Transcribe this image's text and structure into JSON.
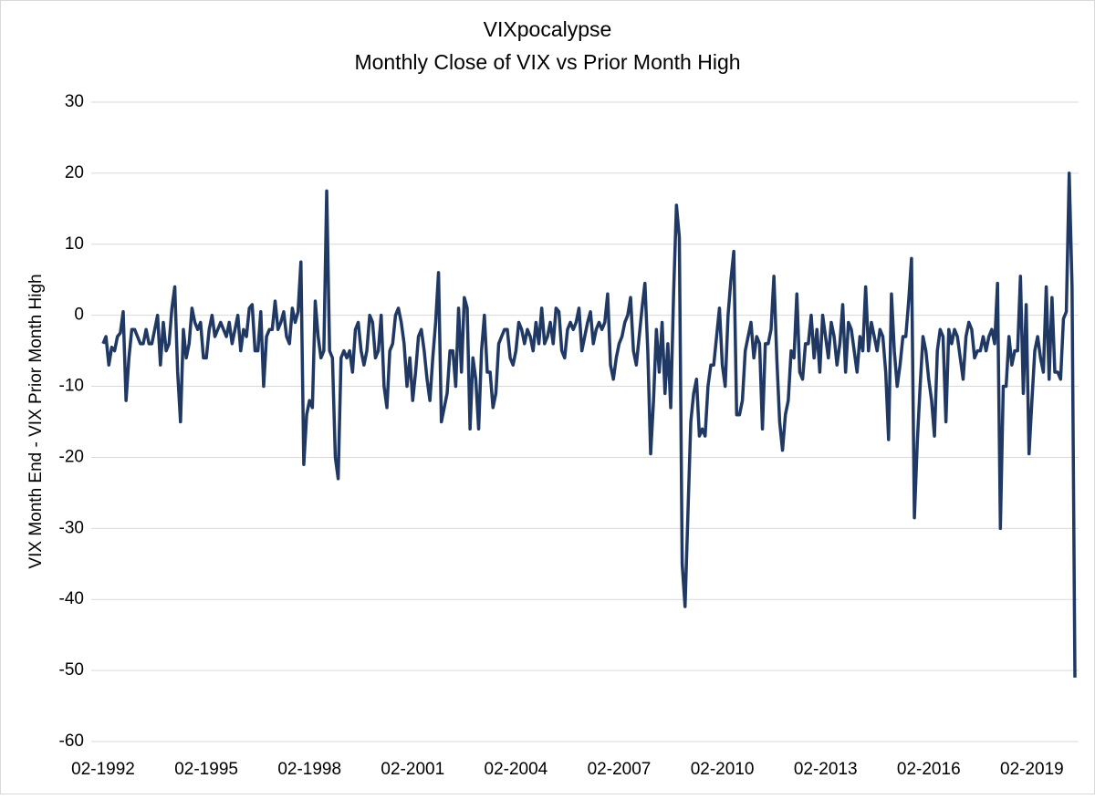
{
  "chart_data": {
    "type": "line",
    "title": "VIXpocalypse",
    "subtitle": "Monthly Close of VIX vs Prior Month High",
    "y_label": "VIX Month End - VIX Prior Month High",
    "ylim": [
      -60,
      30
    ],
    "yticks": [
      -60,
      -50,
      -40,
      -30,
      -20,
      -10,
      0,
      10,
      20,
      30
    ],
    "grid": true,
    "categories": [
      "02-1992",
      null,
      null,
      null,
      null,
      null,
      null,
      null,
      null,
      null,
      null,
      null,
      null,
      null,
      null,
      null,
      null,
      null,
      null,
      null,
      null,
      null,
      null,
      null,
      null,
      null,
      null,
      null,
      null,
      null,
      null,
      null,
      null,
      null,
      null,
      null,
      "02-1995",
      null,
      null,
      null,
      null,
      null,
      null,
      null,
      null,
      null,
      null,
      null,
      null,
      null,
      null,
      null,
      null,
      null,
      null,
      null,
      null,
      null,
      null,
      null,
      null,
      null,
      null,
      null,
      null,
      null,
      null,
      null,
      null,
      null,
      null,
      null,
      "02-1998",
      null,
      null,
      null,
      null,
      null,
      null,
      null,
      null,
      null,
      null,
      null,
      null,
      null,
      null,
      null,
      null,
      null,
      null,
      null,
      null,
      null,
      null,
      null,
      null,
      null,
      null,
      null,
      null,
      null,
      null,
      null,
      null,
      null,
      null,
      null,
      "02-2001",
      null,
      null,
      null,
      null,
      null,
      null,
      null,
      null,
      null,
      null,
      null,
      null,
      null,
      null,
      null,
      null,
      null,
      null,
      null,
      null,
      null,
      null,
      null,
      null,
      null,
      null,
      null,
      null,
      null,
      null,
      null,
      null,
      null,
      null,
      null,
      "02-2004",
      null,
      null,
      null,
      null,
      null,
      null,
      null,
      null,
      null,
      null,
      null,
      null,
      null,
      null,
      null,
      null,
      null,
      null,
      null,
      null,
      null,
      null,
      null,
      null,
      null,
      null,
      null,
      null,
      null,
      null,
      null,
      null,
      null,
      null,
      null,
      "02-2007",
      null,
      null,
      null,
      null,
      null,
      null,
      null,
      null,
      null,
      null,
      null,
      null,
      null,
      null,
      null,
      null,
      null,
      null,
      null,
      null,
      null,
      null,
      null,
      null,
      null,
      null,
      null,
      null,
      null,
      null,
      null,
      null,
      null,
      null,
      null,
      "02-2010",
      null,
      null,
      null,
      null,
      null,
      null,
      null,
      null,
      null,
      null,
      null,
      null,
      null,
      null,
      null,
      null,
      null,
      null,
      null,
      null,
      null,
      null,
      null,
      null,
      null,
      null,
      null,
      null,
      null,
      null,
      null,
      null,
      null,
      null,
      null,
      "02-2013",
      null,
      null,
      null,
      null,
      null,
      null,
      null,
      null,
      null,
      null,
      null,
      null,
      null,
      null,
      null,
      null,
      null,
      null,
      null,
      null,
      null,
      null,
      null,
      null,
      null,
      null,
      null,
      null,
      null,
      null,
      null,
      null,
      null,
      null,
      null,
      "02-2016",
      null,
      null,
      null,
      null,
      null,
      null,
      null,
      null,
      null,
      null,
      null,
      null,
      null,
      null,
      null,
      null,
      null,
      null,
      null,
      null,
      null,
      null,
      null,
      null,
      null,
      null,
      null,
      null,
      null,
      null,
      null,
      null,
      null,
      null,
      null,
      "02-2019",
      null,
      null,
      null,
      null,
      null,
      null,
      null,
      null,
      null,
      null,
      null,
      null,
      null,
      null,
      null
    ],
    "series": [
      {
        "name": "VIX Month End - VIX Prior Month High",
        "color": "#203864",
        "values": [
          -4,
          -3,
          -7,
          -4.5,
          -5,
          -3,
          -2.5,
          0.5,
          -12,
          -6,
          -2,
          -2,
          -3,
          -4,
          -4,
          -2,
          -4,
          -4,
          -2,
          0,
          -7,
          -1,
          -5,
          -4,
          1,
          4,
          -8,
          -15,
          -2,
          -6,
          -4,
          1,
          -1,
          -2,
          -1,
          -6,
          -6,
          -2,
          0,
          -3,
          -2,
          -1,
          -2,
          -3,
          -1,
          -4,
          -2,
          0,
          -5,
          -2,
          -3,
          1,
          1.5,
          -5,
          -5,
          0.5,
          -10,
          -3,
          -2,
          -2,
          2,
          -2,
          -1,
          0.5,
          -3,
          -4,
          1,
          -1,
          0.5,
          7.5,
          -21,
          -14,
          -12,
          -13,
          2,
          -3,
          -6,
          -5,
          17.5,
          -5,
          -6,
          -20,
          -23,
          -6,
          -5,
          -6,
          -5,
          -8,
          -2,
          -1,
          -5,
          -7,
          -5,
          0,
          -1,
          -6,
          -5,
          0,
          -10,
          -13,
          -5,
          -4,
          0,
          1,
          -1,
          -4,
          -10,
          -6,
          -12,
          -8,
          -3,
          -2,
          -5,
          -9,
          -12,
          -6,
          -1,
          6,
          -15,
          -13,
          -11,
          -5,
          -5,
          -10,
          1,
          -8,
          2.5,
          1,
          -16,
          -6,
          -9,
          -16,
          -5,
          0,
          -8,
          -8,
          -13,
          -11,
          -4,
          -3,
          -2,
          -2,
          -6,
          -7,
          -5,
          -1,
          -2,
          -4,
          -2,
          -3,
          -5,
          -1,
          -4,
          1,
          -4,
          -3,
          -1,
          -4,
          1,
          0.5,
          -5,
          -6,
          -2,
          -1,
          -2,
          -1,
          1,
          -5,
          -3,
          -1,
          0.5,
          -4,
          -2,
          -1,
          -2,
          -1,
          3,
          -7,
          -9,
          -6,
          -4,
          -3,
          -1,
          0,
          2.5,
          -5,
          -7,
          -3,
          1,
          4.5,
          -5,
          -19.5,
          -12,
          -2,
          -8,
          -1,
          -11,
          -4,
          -13,
          3,
          15.5,
          11,
          -35,
          -41,
          -28,
          -15,
          -11,
          -9,
          -17,
          -16,
          -17,
          -10,
          -7,
          -7,
          -3,
          1,
          -7,
          -10,
          0,
          5,
          9,
          -14,
          -14,
          -12,
          -5,
          -3,
          -1,
          -6,
          -3,
          -4,
          -16,
          -4,
          -4,
          -2,
          5.5,
          -6,
          -15,
          -19,
          -14,
          -12,
          -5,
          -6,
          3,
          -8,
          -9,
          -4,
          -4,
          0,
          -6,
          -2,
          -8,
          0,
          -3,
          -6,
          -1,
          -3,
          -7,
          -4,
          1.5,
          -8,
          -1,
          -2,
          -5,
          -8,
          -3,
          -5,
          4,
          -5,
          -1,
          -3,
          -5,
          -2,
          -3,
          -8,
          -17.5,
          3,
          -5,
          -10,
          -7,
          -3,
          -3,
          2,
          8,
          -28.5,
          -18,
          -10,
          -3,
          -5,
          -9,
          -12,
          -17,
          -5,
          -2,
          -3,
          -15,
          -2,
          -4,
          -2,
          -3,
          -6,
          -9,
          -3,
          -1,
          -2,
          -6,
          -5,
          -5,
          -3,
          -5,
          -3,
          -2,
          -4,
          4.5,
          -30,
          -10,
          -10,
          -3,
          -7,
          -5,
          -5,
          5.5,
          -11,
          1.5,
          -19.5,
          -12,
          -5,
          -3,
          -6,
          -8,
          4,
          -9,
          2.5,
          -8,
          -8,
          -9,
          -0.5,
          0.5,
          20,
          4,
          -51
        ]
      }
    ]
  }
}
